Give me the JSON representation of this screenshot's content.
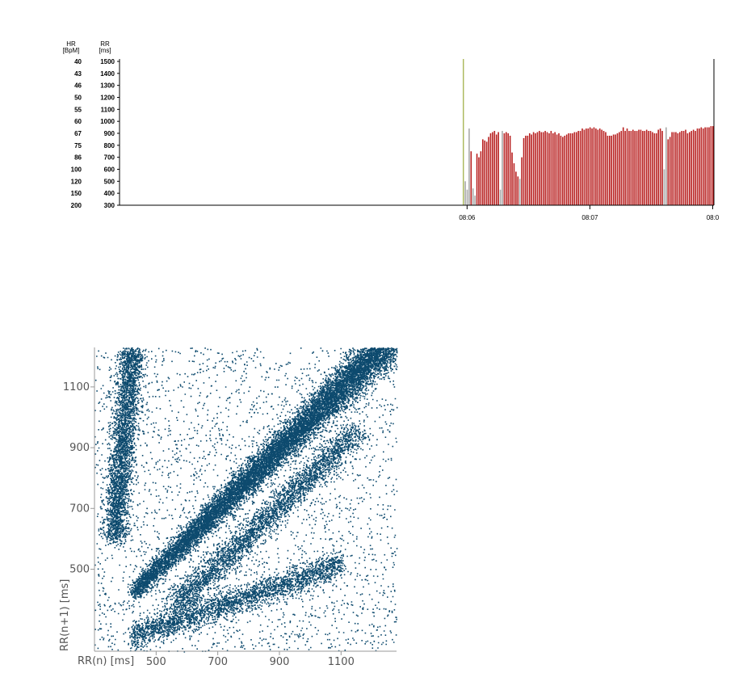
{
  "chart_data": [
    {
      "type": "bar",
      "hr_axis": {
        "label": "HR",
        "unit": "[BpM]",
        "ticks": [
          "40",
          "43",
          "46",
          "50",
          "55",
          "60",
          "67",
          "75",
          "86",
          "100",
          "120",
          "150",
          "200"
        ]
      },
      "rr_axis": {
        "label": "RR",
        "unit": "[ms]",
        "ticks": [
          1500,
          1400,
          1300,
          1200,
          1100,
          1000,
          900,
          800,
          700,
          600,
          500,
          400,
          300
        ],
        "ylim": [
          300,
          1500
        ]
      },
      "x_ticks": [
        "08:06",
        "08:07",
        "08:0"
      ],
      "x_tick_minutes": [
        6,
        7,
        8
      ],
      "xlim_minutes": [
        3.17,
        8.01
      ],
      "marker_minute": 5.97,
      "end_minute": 8.01,
      "colors": {
        "normal": "#b82020",
        "artifact": "#aaaaaa",
        "marker": "#9aaa3a",
        "axis": "#000000"
      },
      "series": [
        {
          "values": [
            500,
            430,
            940,
            750,
            440,
            380,
            730,
            700,
            750,
            850,
            840,
            830,
            870,
            900,
            910,
            920,
            890,
            910,
            430,
            920,
            900,
            910,
            900,
            880,
            740,
            650,
            580,
            540,
            520,
            700,
            860,
            880,
            880,
            900,
            890,
            910,
            900,
            910,
            920,
            910,
            910,
            920,
            910,
            900,
            920,
            900,
            910,
            890,
            900,
            880,
            870,
            880,
            890,
            900,
            900,
            900,
            910,
            910,
            920,
            920,
            940,
            930,
            940,
            940,
            950,
            940,
            950,
            940,
            930,
            940,
            930,
            920,
            910,
            880,
            880,
            880,
            890,
            890,
            900,
            910,
            920,
            950,
            920,
            940,
            920,
            920,
            930,
            920,
            920,
            930,
            930,
            920,
            920,
            930,
            920,
            920,
            910,
            900,
            900,
            930,
            940,
            920,
            600,
            950,
            850,
            870,
            910,
            910,
            910,
            900,
            910,
            920,
            920,
            930,
            900,
            910,
            920,
            930,
            920,
            940,
            940,
            950,
            940,
            950,
            950,
            950,
            960,
            960
          ],
          "artifact": [
            1,
            1,
            1,
            0,
            1,
            1,
            0,
            0,
            0,
            0,
            0,
            0,
            0,
            0,
            0,
            0,
            0,
            0,
            1,
            1,
            0,
            0,
            0,
            0,
            0,
            0,
            0,
            0,
            1,
            0,
            0,
            0,
            0,
            0,
            0,
            0,
            0,
            0,
            0,
            0,
            0,
            0,
            0,
            0,
            0,
            0,
            0,
            0,
            0,
            0,
            0,
            0,
            0,
            0,
            0,
            0,
            0,
            0,
            0,
            0,
            0,
            0,
            0,
            0,
            0,
            0,
            0,
            0,
            0,
            0,
            0,
            0,
            0,
            0,
            0,
            0,
            0,
            0,
            0,
            0,
            0,
            0,
            0,
            0,
            0,
            0,
            0,
            0,
            0,
            0,
            0,
            0,
            0,
            0,
            0,
            0,
            0,
            0,
            0,
            0,
            0,
            0,
            1,
            1,
            0,
            0,
            0,
            0,
            0,
            0,
            0,
            0,
            0,
            0,
            0,
            0,
            0,
            0,
            0,
            0,
            0,
            0,
            0,
            0,
            0,
            0,
            0,
            0
          ]
        }
      ]
    },
    {
      "type": "scatter",
      "xlabel": "RR(n) [ms]",
      "ylabel": "RR(n+1) [ms]",
      "x_ticks": [
        500,
        700,
        900,
        1100
      ],
      "y_ticks": [
        500,
        700,
        900,
        1100
      ],
      "xlim": [
        300,
        1280
      ],
      "ylim": [
        230,
        1230
      ],
      "point_color": "#0d4a6e",
      "point_count": 26000,
      "clusters": [
        {
          "mean_x": 800,
          "mean_y": 800,
          "spread": 30,
          "weight": 0.55,
          "range": [
            420,
            1280
          ],
          "kind": "identity"
        },
        {
          "mean_x": 900,
          "mean_y": 720,
          "spread": 22,
          "weight": 0.12,
          "range": [
            560,
            1150
          ],
          "kind": "below_diagonal"
        },
        {
          "mean_x": 700,
          "mean_y": 320,
          "spread": 22,
          "weight": 0.1,
          "range": [
            420,
            1100
          ],
          "kind": "bottom_band"
        },
        {
          "mean_x": 390,
          "mean_y": 900,
          "spread": 40,
          "weight": 0.12,
          "range": [
            600,
            1230
          ],
          "kind": "left_vertical"
        },
        {
          "kind": "uniform_noise",
          "weight": 0.11
        }
      ]
    }
  ]
}
